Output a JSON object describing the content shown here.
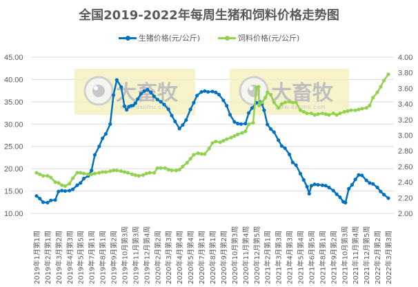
{
  "chart_data": {
    "type": "line",
    "title": "全国2019-2022年每周生猪和饲料价格走势图",
    "xlabel": "",
    "ylabel": "生猪价格(元/公斤)",
    "y2label": "饲料价格(元/公斤)",
    "ylim": [
      10,
      45
    ],
    "y2lim": [
      2.0,
      4.0
    ],
    "yticks": [
      "45.00",
      "40.00",
      "35.00",
      "30.00",
      "25.00",
      "20.00",
      "15.00",
      "10.00"
    ],
    "y2ticks": [
      "4.00",
      "3.80",
      "3.60",
      "3.40",
      "3.20",
      "3.00",
      "2.80",
      "2.60",
      "2.40",
      "2.20",
      "2.00"
    ],
    "grid": true,
    "legend_position": "top",
    "categories": [
      "2019年1月第1周",
      "2019年2月第1周",
      "2019年3月第2周",
      "2019年4月第3周",
      "2019年5月第5周",
      "2019年7月第1周",
      "2019年8月第1周",
      "2019年9月第2周",
      "2019年10月第3周",
      "2019年11月第3周",
      "2019年12月第4周",
      "2020年2月第2周",
      "2020年3月第3周",
      "2020年4月第4周",
      "2020年5月第4周",
      "2020年7月第1周",
      "2020年8月第1周",
      "2020年9月第2周",
      "2020年10月第3周",
      "2020年11月第4周",
      "2020年12月第5周",
      "2021年2月第1周",
      "2021年3月第3周",
      "2021年4月第3周",
      "2021年5月第4周",
      "2021年6月第5周",
      "2021年8月第1周",
      "2021年9月第2周",
      "2021年10月第3周",
      "2021年11月第4周",
      "2021年12月第5周",
      "2022年2月第2周",
      "2022年3月第3周"
    ],
    "series": [
      {
        "name": "生猪价格(元/公斤)",
        "axis": "left",
        "color": "#0070C0",
        "x": [
          0,
          0.3,
          0.6,
          1.0,
          1.3,
          1.7,
          2.0,
          2.3,
          2.6,
          3.0,
          3.3,
          3.7,
          4.0,
          4.3,
          4.7,
          5.0,
          5.3,
          5.7,
          6.0,
          6.3,
          6.7,
          7.0,
          7.3,
          7.7,
          8.0,
          8.2,
          8.4,
          8.6,
          8.8,
          9.0,
          9.2,
          9.5,
          9.8,
          10.1,
          10.4,
          10.7,
          11.0,
          11.3,
          11.6,
          12.0,
          12.3,
          12.6,
          13.0,
          13.3,
          13.6,
          14.0,
          14.3,
          14.6,
          15.0,
          15.3,
          15.6,
          16.0,
          16.3,
          16.6,
          17.0,
          17.3,
          17.6,
          18.0,
          18.3,
          18.6,
          19.0,
          19.3,
          19.6,
          20.0,
          20.3,
          20.5,
          20.7,
          21.0,
          21.3,
          21.6,
          22.0,
          22.3,
          22.6,
          23.0,
          23.3,
          23.6,
          24.0,
          24.3,
          24.6,
          24.8,
          25.0,
          25.3,
          25.6,
          26.0,
          26.3,
          26.6,
          27.0,
          27.3,
          27.6,
          27.9,
          28.1,
          28.4,
          28.7,
          29.0,
          29.3,
          29.6,
          30.0,
          30.3,
          30.6,
          31.0,
          31.3,
          31.6,
          32.0
        ],
        "values": [
          13.9,
          13.3,
          12.5,
          12.4,
          12.9,
          13.0,
          14.9,
          15.1,
          15.0,
          15.1,
          15.4,
          16.3,
          16.8,
          17.8,
          18.4,
          19.6,
          23.1,
          25.0,
          26.8,
          27.8,
          30.0,
          36.5,
          39.9,
          38.3,
          34.0,
          33.2,
          33.9,
          34.1,
          34.2,
          34.7,
          35.6,
          36.8,
          37.4,
          37.7,
          37.1,
          36.2,
          35.5,
          35.0,
          34.4,
          33.3,
          31.9,
          30.6,
          29.0,
          29.8,
          30.9,
          33.3,
          34.8,
          36.4,
          37.2,
          37.4,
          37.2,
          37.3,
          37.1,
          36.6,
          35.3,
          34.1,
          32.1,
          30.5,
          30.1,
          30.0,
          30.1,
          32.5,
          33.6,
          34.8,
          35.0,
          34.5,
          33.1,
          29.9,
          28.9,
          28.2,
          26.4,
          25.1,
          24.6,
          23.2,
          21.4,
          20.8,
          18.9,
          17.5,
          16.0,
          14.4,
          16.2,
          16.5,
          16.4,
          16.3,
          16.2,
          15.8,
          15.1,
          14.3,
          13.6,
          12.6,
          12.4,
          15.5,
          16.4,
          17.6,
          18.6,
          18.5,
          17.4,
          16.8,
          16.6,
          15.8,
          14.9,
          14.2,
          13.4
        ]
      },
      {
        "name": "饲料价格(元/公斤)",
        "axis": "right",
        "color": "#92D050",
        "x": [
          0,
          0.3,
          0.6,
          1.0,
          1.3,
          1.7,
          2.0,
          2.3,
          2.6,
          3.0,
          3.3,
          3.7,
          4.0,
          4.3,
          4.7,
          5.0,
          5.3,
          5.7,
          6.0,
          6.3,
          6.7,
          7.0,
          7.3,
          7.7,
          8.0,
          8.3,
          8.7,
          9.0,
          9.3,
          9.7,
          10.0,
          10.3,
          10.7,
          11.0,
          11.3,
          11.7,
          12.0,
          12.3,
          12.7,
          13.0,
          13.3,
          13.7,
          14.0,
          14.3,
          14.7,
          15.0,
          15.3,
          15.7,
          16.0,
          16.3,
          16.7,
          17.0,
          17.3,
          17.7,
          18.0,
          18.3,
          18.7,
          19.0,
          19.3,
          19.7,
          20.0,
          20.2,
          20.25,
          20.5,
          20.8,
          21.0,
          21.3,
          21.6,
          22.0,
          22.3,
          22.6,
          23.0,
          23.3,
          23.6,
          24.0,
          24.3,
          24.6,
          25.0,
          25.3,
          25.6,
          26.0,
          26.3,
          26.6,
          27.0,
          27.3,
          27.6,
          28.0,
          28.3,
          28.6,
          29.0,
          29.3,
          29.6,
          30.0,
          30.3,
          30.6,
          31.0,
          31.3,
          31.6,
          32.0
        ],
        "values": [
          2.52,
          2.5,
          2.48,
          2.48,
          2.46,
          2.4,
          2.39,
          2.36,
          2.35,
          2.38,
          2.45,
          2.52,
          2.52,
          2.51,
          2.5,
          2.5,
          2.51,
          2.52,
          2.53,
          2.53,
          2.54,
          2.55,
          2.55,
          2.54,
          2.53,
          2.52,
          2.5,
          2.49,
          2.48,
          2.49,
          2.51,
          2.52,
          2.52,
          2.58,
          2.58,
          2.58,
          2.56,
          2.55,
          2.55,
          2.56,
          2.6,
          2.65,
          2.7,
          2.75,
          2.77,
          2.76,
          2.76,
          2.83,
          2.9,
          2.92,
          2.91,
          2.93,
          2.95,
          2.97,
          2.99,
          3.01,
          3.03,
          3.05,
          3.14,
          3.16,
          3.61,
          3.62,
          3.38,
          3.42,
          3.48,
          3.55,
          3.52,
          3.42,
          3.35,
          3.4,
          3.42,
          3.43,
          3.42,
          3.42,
          3.32,
          3.3,
          3.28,
          3.28,
          3.26,
          3.27,
          3.28,
          3.27,
          3.26,
          3.28,
          3.26,
          3.28,
          3.3,
          3.31,
          3.32,
          3.32,
          3.33,
          3.34,
          3.35,
          3.38,
          3.48,
          3.55,
          3.62,
          3.7,
          3.78
        ]
      }
    ]
  },
  "legend": {
    "items": [
      {
        "label": "生猪价格(元/公斤)",
        "color": "#0070C0"
      },
      {
        "label": "饲料价格(元/公斤)",
        "color": "#92D050"
      }
    ]
  },
  "watermark": {
    "text": "大畜牧",
    "url_text": "www.dxumu.com"
  }
}
